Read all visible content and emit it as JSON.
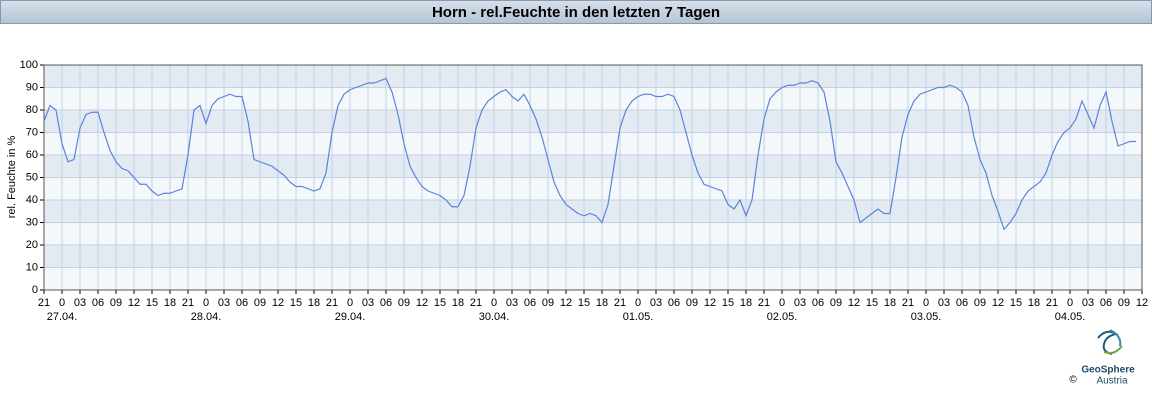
{
  "chart_data": {
    "type": "line",
    "title": "Horn - rel.Feuchte in den letzten 7 Tagen",
    "ylabel": "rel. Feuchte in %",
    "source_name": "GeoSphere",
    "source_sub": "Austria",
    "copyright": "©",
    "grid": true,
    "xlim": [
      -3,
      180
    ],
    "ylim": [
      0,
      100
    ],
    "yticks": [
      0,
      10,
      20,
      30,
      40,
      50,
      60,
      70,
      80,
      90,
      100
    ],
    "xticks": [
      {
        "value": -3,
        "label": "21"
      },
      0,
      {
        "value": 3,
        "label": "03"
      },
      {
        "value": 6,
        "label": "06"
      },
      {
        "value": 9,
        "label": "09"
      },
      12,
      15,
      18,
      21,
      {
        "value": 24,
        "label": "0"
      },
      {
        "value": 27,
        "label": "03"
      },
      {
        "value": 30,
        "label": "06"
      },
      {
        "value": 33,
        "label": "09"
      },
      {
        "value": 36,
        "label": "12"
      },
      {
        "value": 39,
        "label": "15"
      },
      {
        "value": 42,
        "label": "18"
      },
      {
        "value": 45,
        "label": "21"
      },
      {
        "value": 48,
        "label": "0"
      },
      {
        "value": 51,
        "label": "03"
      },
      {
        "value": 54,
        "label": "06"
      },
      {
        "value": 57,
        "label": "09"
      },
      {
        "value": 60,
        "label": "12"
      },
      {
        "value": 63,
        "label": "15"
      },
      {
        "value": 66,
        "label": "18"
      },
      {
        "value": 69,
        "label": "21"
      },
      {
        "value": 72,
        "label": "0"
      },
      {
        "value": 75,
        "label": "03"
      },
      {
        "value": 78,
        "label": "06"
      },
      {
        "value": 81,
        "label": "09"
      },
      {
        "value": 84,
        "label": "12"
      },
      {
        "value": 87,
        "label": "15"
      },
      {
        "value": 90,
        "label": "18"
      },
      {
        "value": 93,
        "label": "21"
      },
      {
        "value": 96,
        "label": "0"
      },
      {
        "value": 99,
        "label": "03"
      },
      {
        "value": 102,
        "label": "06"
      },
      {
        "value": 105,
        "label": "09"
      },
      {
        "value": 108,
        "label": "12"
      },
      {
        "value": 111,
        "label": "15"
      },
      {
        "value": 114,
        "label": "18"
      },
      {
        "value": 117,
        "label": "21"
      },
      {
        "value": 120,
        "label": "0"
      },
      {
        "value": 123,
        "label": "03"
      },
      {
        "value": 126,
        "label": "06"
      },
      {
        "value": 129,
        "label": "09"
      },
      {
        "value": 132,
        "label": "12"
      },
      {
        "value": 135,
        "label": "15"
      },
      {
        "value": 138,
        "label": "18"
      },
      {
        "value": 141,
        "label": "21"
      },
      {
        "value": 144,
        "label": "0"
      },
      {
        "value": 147,
        "label": "03"
      },
      {
        "value": 150,
        "label": "06"
      },
      {
        "value": 153,
        "label": "09"
      },
      {
        "value": 156,
        "label": "12"
      },
      {
        "value": 159,
        "label": "15"
      },
      {
        "value": 162,
        "label": "18"
      },
      {
        "value": 165,
        "label": "21"
      },
      {
        "value": 168,
        "label": "0"
      },
      {
        "value": 171,
        "label": "03"
      },
      {
        "value": 174,
        "label": "06"
      },
      {
        "value": 177,
        "label": "09"
      },
      {
        "value": 180,
        "label": "12"
      }
    ],
    "date_labels": [
      {
        "value": 0,
        "label": "27.04."
      },
      {
        "value": 24,
        "label": "28.04."
      },
      {
        "value": 48,
        "label": "29.04."
      },
      {
        "value": 72,
        "label": "30.04."
      },
      {
        "value": 96,
        "label": "01.05."
      },
      {
        "value": 120,
        "label": "02.05."
      },
      {
        "value": 144,
        "label": "03.05."
      },
      {
        "value": 168,
        "label": "04.05."
      }
    ],
    "x": [
      -3,
      -2,
      -1,
      0,
      1,
      2,
      3,
      4,
      5,
      6,
      7,
      8,
      9,
      10,
      11,
      12,
      13,
      14,
      15,
      16,
      17,
      18,
      19,
      20,
      21,
      22,
      23,
      24,
      25,
      26,
      27,
      28,
      29,
      30,
      31,
      32,
      33,
      34,
      35,
      36,
      37,
      38,
      39,
      40,
      41,
      42,
      43,
      44,
      45,
      46,
      47,
      48,
      49,
      50,
      51,
      52,
      53,
      54,
      55,
      56,
      57,
      58,
      59,
      60,
      61,
      62,
      63,
      64,
      65,
      66,
      67,
      68,
      69,
      70,
      71,
      72,
      73,
      74,
      75,
      76,
      77,
      78,
      79,
      80,
      81,
      82,
      83,
      84,
      85,
      86,
      87,
      88,
      89,
      90,
      91,
      92,
      93,
      94,
      95,
      96,
      97,
      98,
      99,
      100,
      101,
      102,
      103,
      104,
      105,
      106,
      107,
      108,
      109,
      110,
      111,
      112,
      113,
      114,
      115,
      116,
      117,
      118,
      119,
      120,
      121,
      122,
      123,
      124,
      125,
      126,
      127,
      128,
      129,
      130,
      131,
      132,
      133,
      134,
      135,
      136,
      137,
      138,
      139,
      140,
      141,
      142,
      143,
      144,
      145,
      146,
      147,
      148,
      149,
      150,
      151,
      152,
      153,
      154,
      155,
      156,
      157,
      158,
      159,
      160,
      161,
      162,
      163,
      164,
      165,
      166,
      167,
      168,
      169,
      170,
      171,
      172,
      173,
      174,
      175,
      176,
      177,
      178,
      179
    ],
    "series": [
      {
        "color": "#5b84d9",
        "values": [
          75,
          82,
          80,
          65,
          57,
          58,
          72,
          78,
          79,
          79,
          70,
          62,
          57,
          54,
          53,
          50,
          47,
          47,
          44,
          42,
          43,
          43,
          44,
          45,
          60,
          80,
          82,
          74,
          82,
          85,
          86,
          87,
          86,
          86,
          75,
          58,
          57,
          56,
          55,
          53,
          51,
          48,
          46,
          46,
          45,
          44,
          45,
          52,
          70,
          82,
          87,
          89,
          90,
          91,
          92,
          92,
          93,
          94,
          88,
          78,
          65,
          55,
          50,
          46,
          44,
          43,
          42,
          40,
          37,
          37,
          42,
          55,
          72,
          80,
          84,
          86,
          88,
          89,
          86,
          84,
          87,
          82,
          76,
          68,
          58,
          48,
          42,
          38,
          36,
          34,
          33,
          34,
          33,
          30,
          38,
          55,
          72,
          80,
          84,
          86,
          87,
          87,
          86,
          86,
          87,
          86,
          80,
          70,
          60,
          52,
          47,
          46,
          45,
          44,
          38,
          36,
          40,
          33,
          40,
          60,
          76,
          85,
          88,
          90,
          91,
          91,
          92,
          92,
          93,
          92,
          88,
          75,
          57,
          52,
          46,
          40,
          30,
          32,
          34,
          36,
          34,
          34,
          50,
          68,
          78,
          84,
          87,
          88,
          89,
          90,
          90,
          91,
          90,
          88,
          82,
          68,
          58,
          52,
          42,
          35,
          27,
          30,
          34,
          40,
          44,
          46,
          48,
          52,
          60,
          66,
          70,
          72,
          76,
          84,
          78,
          72,
          82,
          88,
          75,
          64,
          65,
          66,
          66
        ]
      }
    ]
  }
}
